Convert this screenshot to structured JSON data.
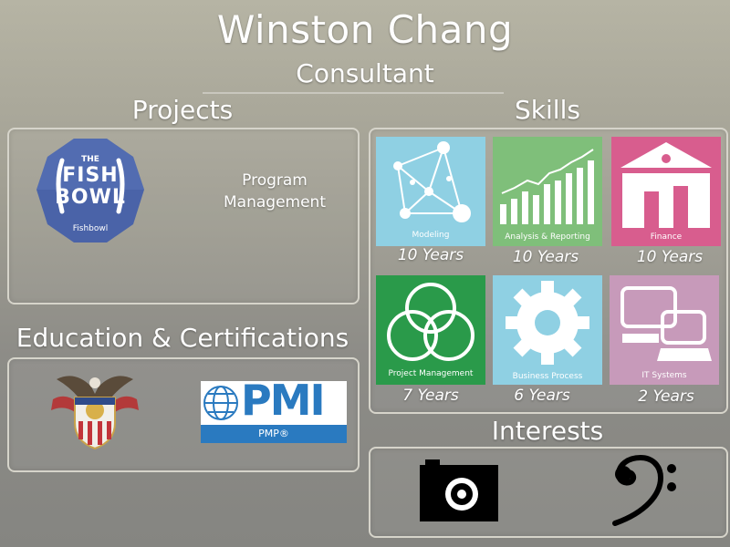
{
  "header": {
    "name": "Winston Chang",
    "title": "Consultant"
  },
  "sections": {
    "projects": "Projects",
    "skills": "Skills",
    "education": "Education & Certifications",
    "interests": "Interests"
  },
  "projects": [
    {
      "logo_lines": [
        "THE",
        "FISH",
        "BOWL"
      ],
      "logo_caption": "Fishbowl",
      "name_line1": "Program",
      "name_line2": "Management"
    }
  ],
  "education": {
    "pmi_logo": "PMI",
    "pmp_label": "PMP®"
  },
  "skills": [
    {
      "label": "Modeling",
      "years": "10 Years",
      "icon": "network-icon",
      "color": "#8fd0e3"
    },
    {
      "label": "Analysis & Reporting",
      "years": "10 Years",
      "icon": "bar-chart-icon",
      "color": "#7fbf7a"
    },
    {
      "label": "Finance",
      "years": "10 Years",
      "icon": "bank-icon",
      "color": "#d85d8e"
    },
    {
      "label": "Project Management",
      "years": "7 Years",
      "icon": "circles-icon",
      "color": "#2a9a4a"
    },
    {
      "label": "Business Process",
      "years": "6 Years",
      "icon": "gear-icon",
      "color": "#8fd0e3"
    },
    {
      "label": "IT Systems",
      "years": "2 Years",
      "icon": "computer-icon",
      "color": "#c79aba"
    }
  ],
  "interests": [
    {
      "icon": "camera-icon"
    },
    {
      "icon": "bass-clef-icon"
    }
  ],
  "colors": {
    "text": "#ffffff",
    "panel_border": "#d6d4ca",
    "pmi_blue": "#2a7ac0",
    "fishbowl_blue": "#4a63a8"
  }
}
